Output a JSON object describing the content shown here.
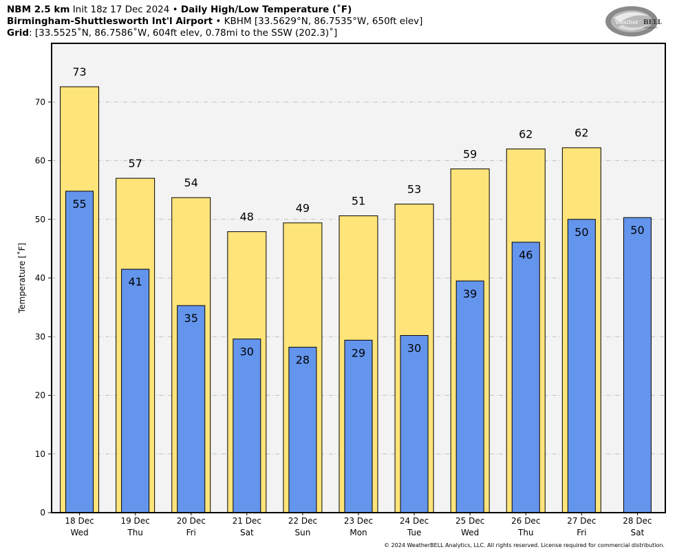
{
  "header": {
    "model": "NBM 2.5 km",
    "init": "Init 18z 17 Dec 2024",
    "bullet": "•",
    "product": "Daily High/Low Temperature (˚F)",
    "station_name": "Birmingham-Shuttlesworth Int'l Airport",
    "station_info": "KBHM [33.5629°N, 86.7535°W, 650ft elev]",
    "grid_label": "Grid",
    "grid_info": ": [33.5525˚N, 86.7586˚W, 604ft elev, 0.78mi to the SSW (202.3)˚]"
  },
  "logo": {
    "text_a": "Weather",
    "text_b": "BELL",
    "sub": "Analytics LLC"
  },
  "copyright": "© 2024 WeatherBELL Analytics, LLC. All rights reserved. License required for commercial distribution.",
  "chart_data": {
    "type": "bar",
    "title": "Daily High/Low Temperature (˚F)",
    "ylabel": "Temperature [˚F]",
    "ylim": [
      0,
      80
    ],
    "yticks": [
      0,
      10,
      20,
      30,
      40,
      50,
      60,
      70
    ],
    "grid": "horizontal dash-dot",
    "categories": [
      [
        "18 Dec",
        "Wed"
      ],
      [
        "19 Dec",
        "Thu"
      ],
      [
        "20 Dec",
        "Fri"
      ],
      [
        "21 Dec",
        "Sat"
      ],
      [
        "22 Dec",
        "Sun"
      ],
      [
        "23 Dec",
        "Mon"
      ],
      [
        "24 Dec",
        "Tue"
      ],
      [
        "25 Dec",
        "Wed"
      ],
      [
        "26 Dec",
        "Thu"
      ],
      [
        "27 Dec",
        "Fri"
      ],
      [
        "28 Dec",
        "Sat"
      ]
    ],
    "series": [
      {
        "key": "high",
        "color": "#ffe47a",
        "values": [
          72.6,
          57.0,
          53.7,
          47.9,
          49.4,
          50.6,
          52.6,
          58.6,
          62.0,
          62.2,
          null
        ],
        "labels": [
          "73",
          "57",
          "54",
          "48",
          "49",
          "51",
          "53",
          "59",
          "62",
          "62",
          null
        ]
      },
      {
        "key": "low",
        "color": "#6495ed",
        "values": [
          54.8,
          41.5,
          35.3,
          29.6,
          28.2,
          29.4,
          30.2,
          39.5,
          46.1,
          50.0,
          50.3
        ],
        "labels": [
          "55",
          "41",
          "35",
          "30",
          "28",
          "29",
          "30",
          "39",
          "46",
          "50",
          "50"
        ]
      }
    ],
    "plot_background": "#f3f3f3"
  }
}
